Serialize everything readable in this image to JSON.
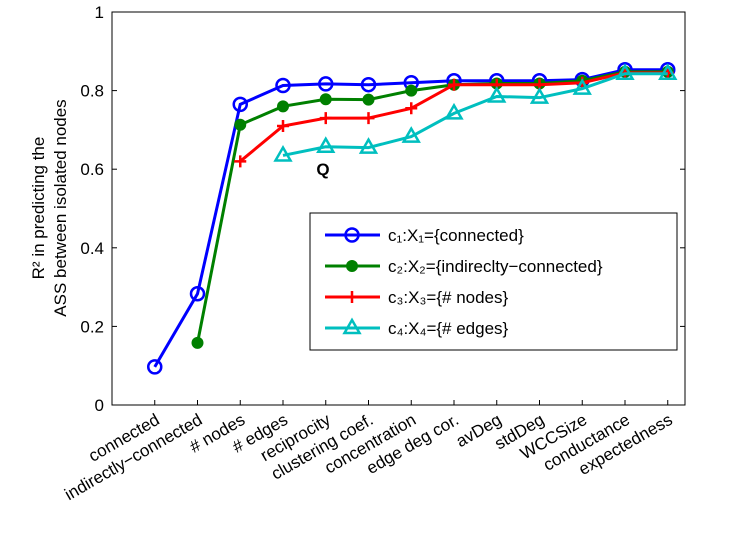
{
  "chart_data": {
    "type": "line",
    "ylabel": [
      "R² in predicting the",
      "ASS between isolated nodes"
    ],
    "annotation": "Q",
    "categories": [
      "connected",
      "indirectly−connected",
      "# nodes",
      "# edges",
      "reciprocity",
      "clustering coef.",
      "concentration",
      "edge deg cor.",
      "avDeg",
      "stdDeg",
      "WCCSize",
      "conductance",
      "expectedness"
    ],
    "series": [
      {
        "name": "c₁:X₁={connected}",
        "color": "#0000ff",
        "marker": "circle",
        "values": [
          0.097,
          0.283,
          0.765,
          0.813,
          0.817,
          0.815,
          0.82,
          0.825,
          0.825,
          0.825,
          0.828,
          0.853,
          0.853
        ]
      },
      {
        "name": "c₂:X₂={indireclty−connected}",
        "color": "#008000",
        "marker": "dot",
        "values": [
          null,
          0.158,
          0.713,
          0.76,
          0.778,
          0.777,
          0.8,
          0.815,
          0.818,
          0.818,
          0.825,
          0.848,
          0.848
        ]
      },
      {
        "name": "c₃:X₃={# nodes}",
        "color": "#ff0000",
        "marker": "plus",
        "values": [
          null,
          null,
          0.62,
          0.71,
          0.73,
          0.73,
          0.755,
          0.815,
          0.815,
          0.815,
          0.82,
          0.845,
          0.845
        ]
      },
      {
        "name": "c₄:X₄={# edges}",
        "color": "#00bfbf",
        "marker": "triangle",
        "values": [
          null,
          null,
          null,
          0.635,
          0.657,
          0.655,
          0.683,
          0.742,
          0.785,
          0.782,
          0.805,
          0.843,
          0.843
        ]
      }
    ],
    "ylim": [
      0,
      1
    ],
    "yticks": [
      0,
      0.2,
      0.4,
      0.6,
      0.8,
      1
    ],
    "grid": false
  }
}
